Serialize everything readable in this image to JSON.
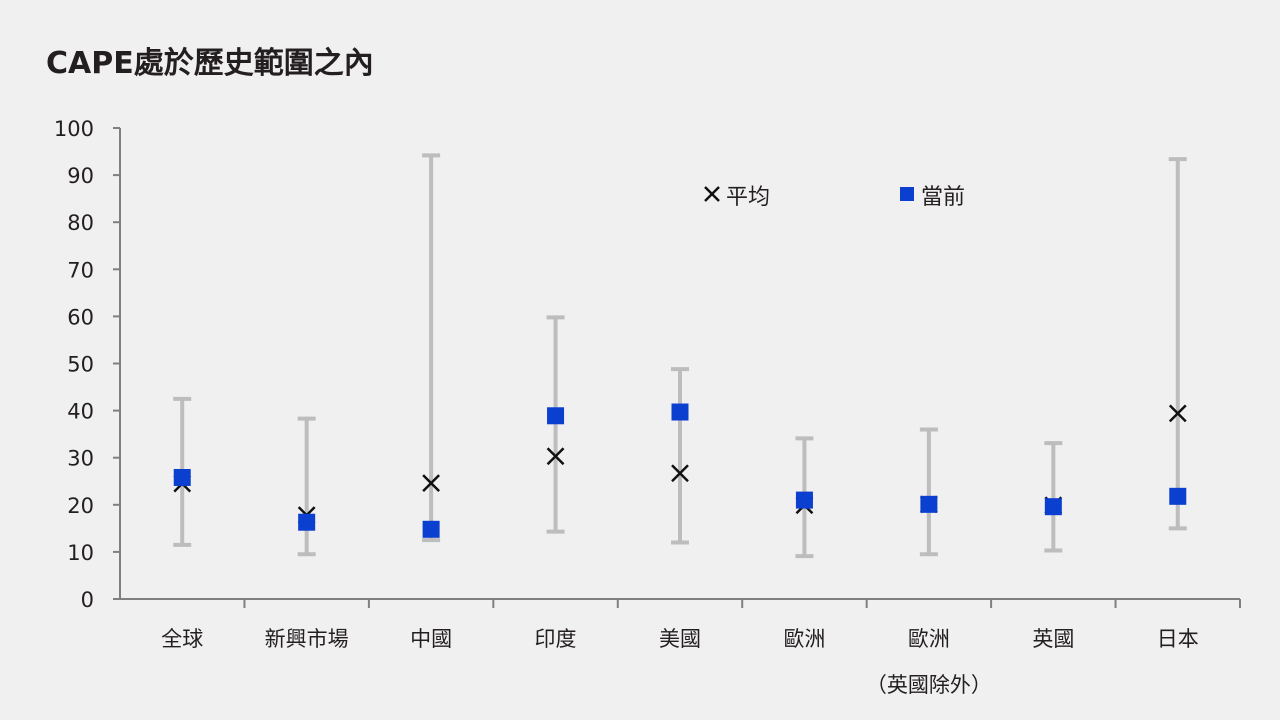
{
  "title": "CAPE處於歷史範圍之內",
  "colors": {
    "range": "#bdbdbd",
    "current": "#0b3fd0",
    "average": "#111111",
    "axis": "#7f7f7f",
    "text": "#231f20"
  },
  "legend": {
    "average_label": "平均",
    "current_label": "當前"
  },
  "chart_data": {
    "type": "scatter",
    "title": "CAPE處於歷史範圍之內",
    "ylim": [
      0,
      100
    ],
    "yticks": [
      0,
      10,
      20,
      30,
      40,
      50,
      60,
      70,
      80,
      90,
      100
    ],
    "categories": [
      {
        "label": "全球",
        "label2": "",
        "min": 11.5,
        "max": 42.5,
        "average": 24.5,
        "current": 25.8
      },
      {
        "label": "新興市場",
        "label2": "",
        "min": 9.5,
        "max": 38.3,
        "average": 17.8,
        "current": 16.3
      },
      {
        "label": "中國",
        "label2": "",
        "min": 12.5,
        "max": 94.2,
        "average": 24.6,
        "current": 14.8
      },
      {
        "label": "印度",
        "label2": "",
        "min": 14.3,
        "max": 59.8,
        "average": 30.3,
        "current": 38.9
      },
      {
        "label": "美國",
        "label2": "",
        "min": 12.0,
        "max": 48.8,
        "average": 26.7,
        "current": 39.7
      },
      {
        "label": "歐洲",
        "label2": "",
        "min": 9.1,
        "max": 34.1,
        "average": 19.9,
        "current": 21.0
      },
      {
        "label": "歐洲",
        "label2": "（英國除外）",
        "min": 9.5,
        "max": 36.0,
        "average": 20.1,
        "current": 20.1
      },
      {
        "label": "英國",
        "label2": "",
        "min": 10.3,
        "max": 33.1,
        "average": 19.9,
        "current": 19.6
      },
      {
        "label": "日本",
        "label2": "",
        "min": 15.0,
        "max": 93.4,
        "average": 39.4,
        "current": 21.8
      }
    ],
    "series": [
      {
        "name": "平均",
        "key": "average",
        "marker": "x"
      },
      {
        "name": "當前",
        "key": "current",
        "marker": "square"
      }
    ],
    "legend_position": "top-right"
  }
}
